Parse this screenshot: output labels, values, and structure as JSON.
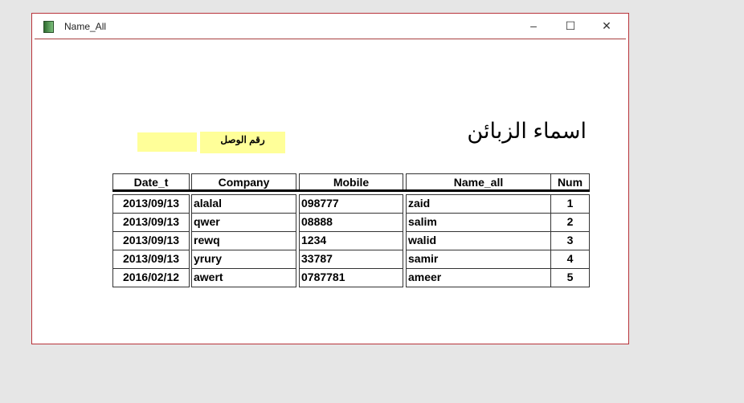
{
  "window": {
    "title": "Name_All",
    "minimize": "–",
    "maximize": "☐",
    "close": "✕"
  },
  "report": {
    "heading": "اسماء الزبائن",
    "receipt_label": "رقم الوصل",
    "receipt_value": "",
    "columns": [
      "Date_t",
      "Company",
      "Mobile",
      "Name_all",
      "Num"
    ],
    "rows": [
      [
        "2013/09/13",
        "alalal",
        "098777",
        "zaid",
        "1"
      ],
      [
        "2013/09/13",
        "qwer",
        "08888",
        "salim",
        "2"
      ],
      [
        "2013/09/13",
        "rewq",
        "1234",
        "walid",
        "3"
      ],
      [
        "2013/09/13",
        "yrury",
        "33787",
        "samir",
        "4"
      ],
      [
        "2016/02/12",
        "awert",
        "0787781",
        "ameer",
        "5"
      ]
    ]
  }
}
